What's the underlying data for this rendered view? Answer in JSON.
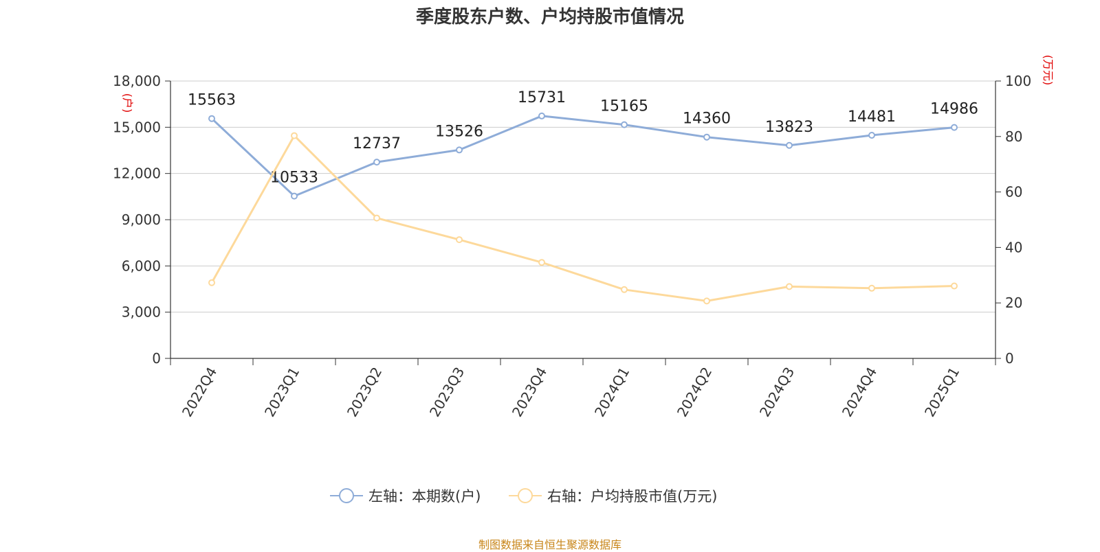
{
  "title": "季度股东户数、户均持股市值情况",
  "footer": "制图数据来自恒生聚源数据库",
  "colors": {
    "left_series": "#8eacd8",
    "right_series": "#fdd99b",
    "unit": "#e00000",
    "footer": "#c8861a"
  },
  "chart_data": {
    "type": "line",
    "categories": [
      "2022Q4",
      "2023Q1",
      "2023Q2",
      "2023Q3",
      "2023Q4",
      "2024Q1",
      "2024Q2",
      "2024Q3",
      "2024Q4",
      "2025Q1"
    ],
    "left_axis": {
      "unit": "(户)",
      "ylim": [
        0,
        18000
      ],
      "ticks": [
        "0",
        "3,000",
        "6,000",
        "9,000",
        "12,000",
        "15,000",
        "18,000"
      ],
      "tick_values": [
        0,
        3000,
        6000,
        9000,
        12000,
        15000,
        18000
      ]
    },
    "right_axis": {
      "unit": "(万元)",
      "ylim": [
        0,
        100
      ],
      "ticks": [
        "0",
        "20",
        "40",
        "60",
        "80",
        "100"
      ],
      "tick_values": [
        0,
        20,
        40,
        60,
        80,
        100
      ]
    },
    "grid": true,
    "legend_position": "bottom-center",
    "series": [
      {
        "name": "左轴：本期数(户)",
        "axis": "left",
        "values": [
          15563,
          10533,
          12737,
          13526,
          15731,
          15165,
          14360,
          13823,
          14481,
          14986
        ],
        "labels": [
          "15563",
          "10533",
          "12737",
          "13526",
          "15731",
          "15165",
          "14360",
          "13823",
          "14481",
          "14986"
        ]
      },
      {
        "name": "右轴：户均持股市值(万元)",
        "axis": "right",
        "values": [
          27.3,
          80.3,
          50.6,
          42.8,
          34.6,
          24.8,
          20.7,
          25.9,
          25.3,
          26.1
        ]
      }
    ]
  }
}
